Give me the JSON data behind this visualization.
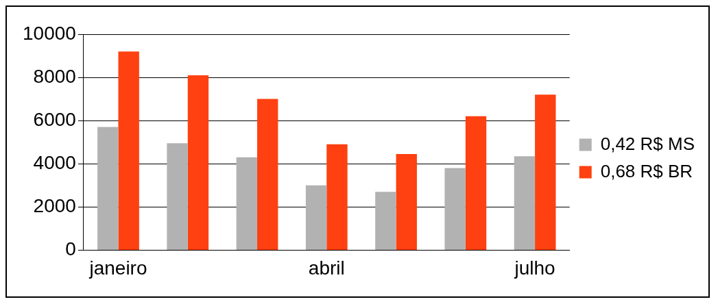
{
  "chart_data": {
    "type": "bar",
    "categories": [
      "janeiro",
      null,
      null,
      "abril",
      null,
      null,
      "julho"
    ],
    "series": [
      {
        "name": "0,42 R$ MS",
        "color": "#b2b2b2",
        "values": [
          5700,
          4950,
          4300,
          3000,
          2700,
          3800,
          4350
        ]
      },
      {
        "name": "0,68 R$ BR",
        "color": "#ff4010",
        "values": [
          9200,
          8100,
          7000,
          4900,
          4450,
          6200,
          7200
        ]
      }
    ],
    "ylim": [
      0,
      10000
    ],
    "yticks": [
      0,
      2000,
      4000,
      6000,
      8000,
      10000
    ],
    "grid": "y",
    "legend": "right"
  }
}
